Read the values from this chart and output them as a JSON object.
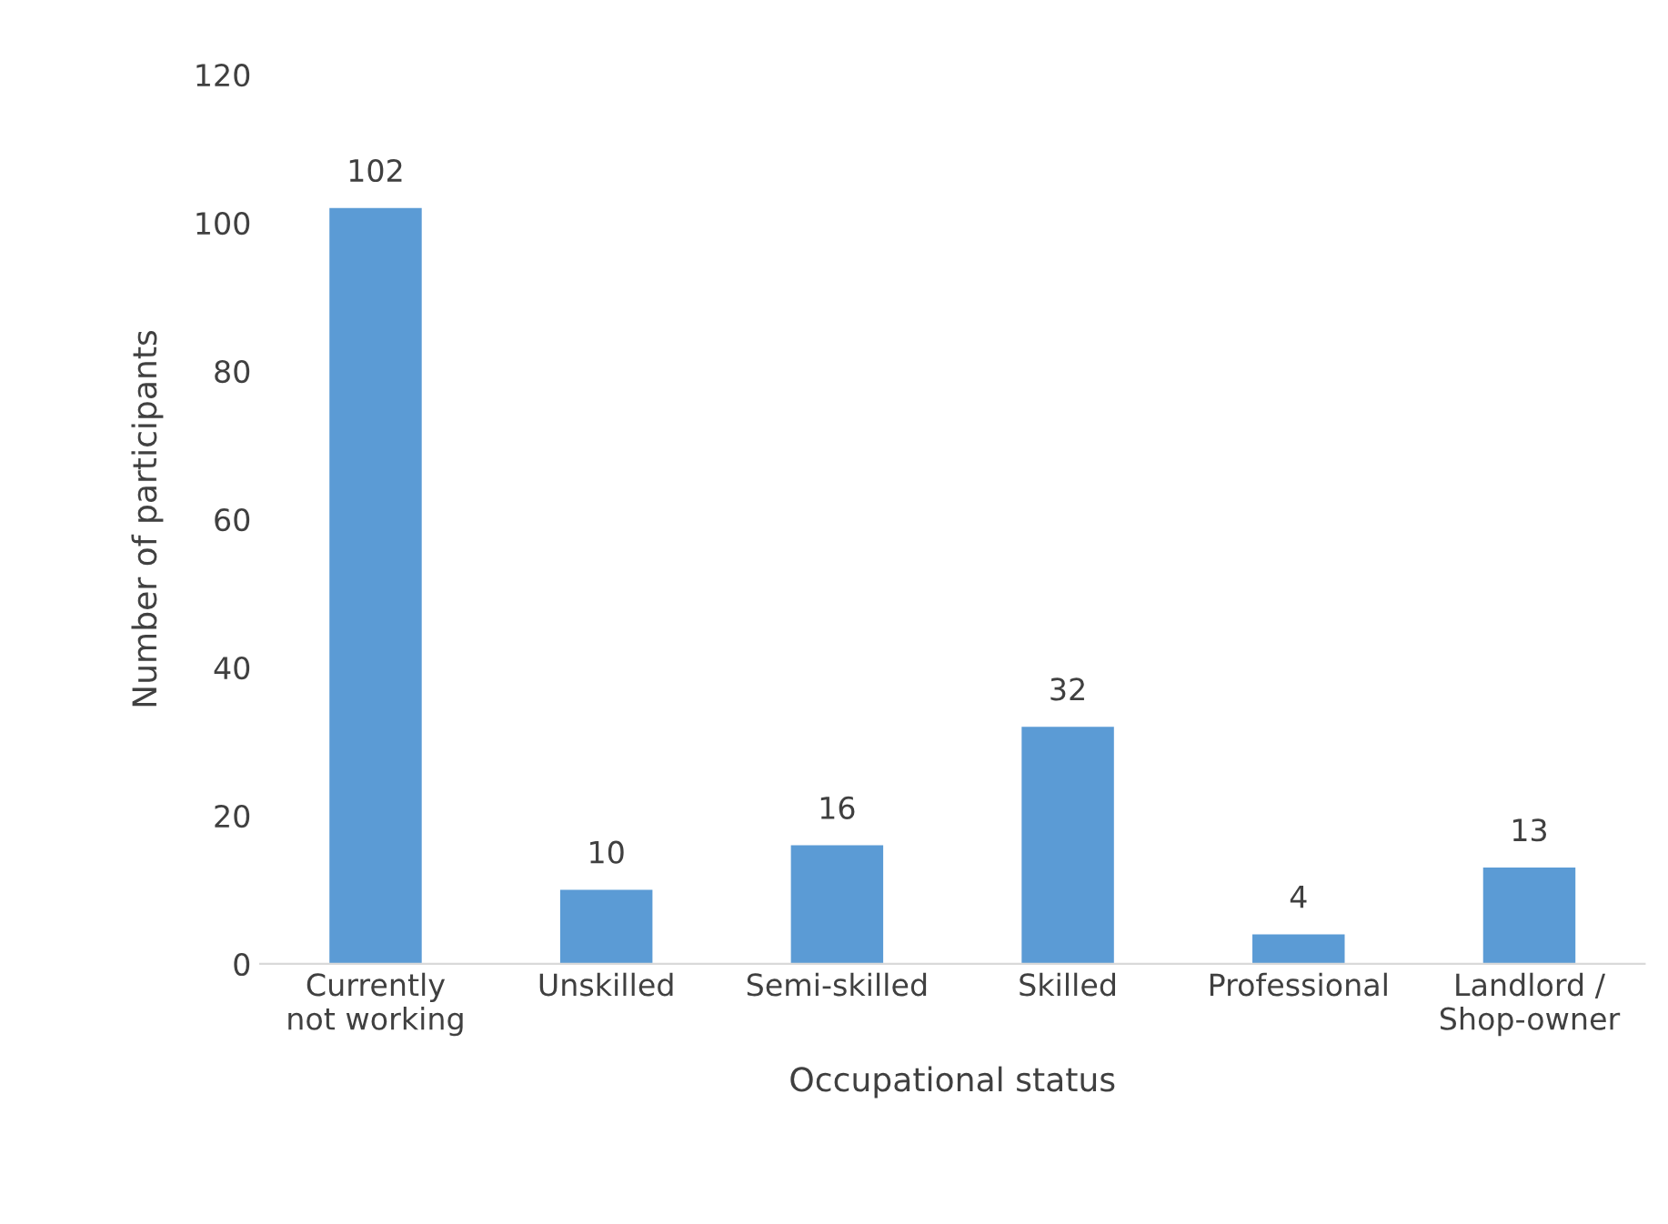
{
  "chart_data": {
    "type": "bar",
    "xlabel": "Occupational status",
    "ylabel": "Number of participants",
    "categories": [
      "Currently\nnot working",
      "Unskilled",
      "Semi-skilled",
      "Skilled",
      "Professional",
      "Landlord /\nShop-owner"
    ],
    "values": [
      102,
      10,
      16,
      32,
      4,
      13
    ],
    "color": "#5b9bd5",
    "ylim": [
      0,
      120
    ],
    "yticks": [
      0,
      20,
      40,
      60,
      80,
      100,
      120
    ],
    "data_labels": true
  }
}
